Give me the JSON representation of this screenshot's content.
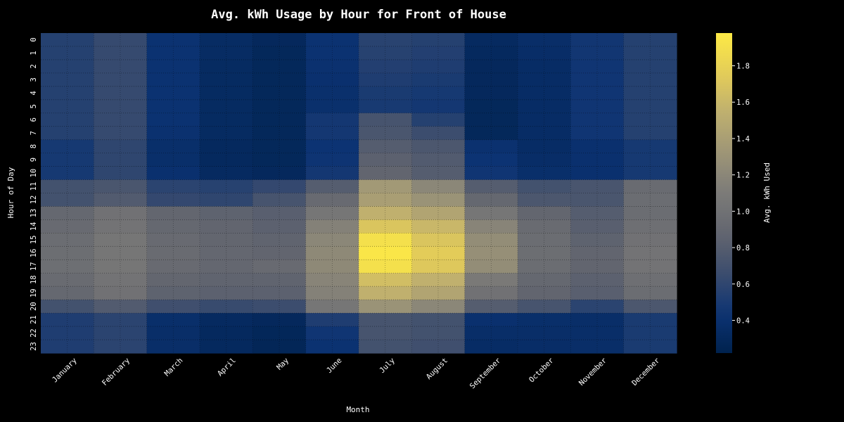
{
  "chart_data": {
    "type": "heatmap",
    "title": "Avg. kWh Usage by Hour for Front of House",
    "xlabel": "Month",
    "ylabel": "Hour of Day",
    "colorbar_label": "Avg. kWh Used",
    "colormap": "cividis",
    "color_range": [
      0.22,
      1.98
    ],
    "colorbar_ticks": [
      "0.4",
      "0.6",
      "0.8",
      "1.0",
      "1.2",
      "1.4",
      "1.6",
      "1.8"
    ],
    "grid": true,
    "x": [
      "January",
      "February",
      "March",
      "April",
      "May",
      "June",
      "July",
      "August",
      "September",
      "October",
      "November",
      "December"
    ],
    "y": [
      "0",
      "1",
      "2",
      "3",
      "4",
      "5",
      "6",
      "7",
      "8",
      "9",
      "10",
      "11",
      "12",
      "13",
      "14",
      "15",
      "16",
      "17",
      "18",
      "19",
      "20",
      "21",
      "22",
      "23"
    ],
    "values": [
      [
        0.55,
        0.63,
        0.42,
        0.34,
        0.3,
        0.42,
        0.57,
        0.55,
        0.32,
        0.37,
        0.46,
        0.55
      ],
      [
        0.55,
        0.63,
        0.42,
        0.34,
        0.29,
        0.42,
        0.56,
        0.54,
        0.31,
        0.36,
        0.46,
        0.55
      ],
      [
        0.55,
        0.63,
        0.42,
        0.33,
        0.29,
        0.41,
        0.54,
        0.52,
        0.3,
        0.35,
        0.45,
        0.55
      ],
      [
        0.55,
        0.63,
        0.42,
        0.33,
        0.29,
        0.4,
        0.52,
        0.5,
        0.3,
        0.35,
        0.45,
        0.55
      ],
      [
        0.55,
        0.63,
        0.42,
        0.33,
        0.29,
        0.39,
        0.5,
        0.48,
        0.3,
        0.35,
        0.45,
        0.55
      ],
      [
        0.55,
        0.63,
        0.42,
        0.33,
        0.29,
        0.39,
        0.49,
        0.47,
        0.29,
        0.35,
        0.45,
        0.55
      ],
      [
        0.55,
        0.63,
        0.42,
        0.33,
        0.29,
        0.47,
        0.72,
        0.55,
        0.29,
        0.35,
        0.45,
        0.55
      ],
      [
        0.55,
        0.63,
        0.41,
        0.33,
        0.29,
        0.47,
        0.74,
        0.66,
        0.29,
        0.35,
        0.45,
        0.55
      ],
      [
        0.48,
        0.6,
        0.38,
        0.31,
        0.29,
        0.43,
        0.8,
        0.75,
        0.41,
        0.35,
        0.4,
        0.48
      ],
      [
        0.48,
        0.6,
        0.38,
        0.31,
        0.29,
        0.44,
        0.84,
        0.78,
        0.43,
        0.36,
        0.4,
        0.48
      ],
      [
        0.48,
        0.6,
        0.4,
        0.32,
        0.3,
        0.47,
        0.87,
        0.8,
        0.45,
        0.38,
        0.4,
        0.48
      ],
      [
        0.7,
        0.74,
        0.58,
        0.56,
        0.62,
        0.8,
        1.35,
        1.2,
        0.8,
        0.7,
        0.73,
        0.93
      ],
      [
        0.7,
        0.78,
        0.62,
        0.6,
        0.72,
        0.92,
        1.4,
        1.3,
        0.9,
        0.75,
        0.74,
        0.95
      ],
      [
        0.9,
        1.0,
        0.88,
        0.85,
        0.82,
        1.05,
        1.55,
        1.45,
        1.05,
        0.88,
        0.8,
        0.95
      ],
      [
        0.92,
        1.02,
        0.9,
        0.87,
        0.84,
        1.15,
        1.7,
        1.6,
        1.18,
        0.93,
        0.82,
        0.98
      ],
      [
        0.95,
        1.05,
        0.92,
        0.88,
        0.86,
        1.2,
        1.9,
        1.7,
        1.25,
        0.95,
        0.85,
        1.0
      ],
      [
        0.96,
        1.05,
        0.93,
        0.89,
        0.87,
        1.22,
        1.95,
        1.75,
        1.27,
        0.96,
        0.87,
        1.02
      ],
      [
        0.97,
        1.05,
        0.92,
        0.89,
        0.92,
        1.22,
        1.9,
        1.72,
        1.25,
        0.95,
        0.87,
        1.02
      ],
      [
        0.93,
        1.02,
        0.88,
        0.86,
        0.86,
        1.18,
        1.65,
        1.55,
        1.08,
        0.9,
        0.84,
        0.98
      ],
      [
        0.9,
        1.0,
        0.85,
        0.84,
        0.84,
        1.15,
        1.55,
        1.45,
        1.0,
        0.87,
        0.82,
        0.95
      ],
      [
        0.7,
        0.78,
        0.68,
        0.64,
        0.66,
        1.05,
        1.3,
        1.2,
        0.8,
        0.72,
        0.58,
        0.75
      ],
      [
        0.52,
        0.58,
        0.38,
        0.32,
        0.3,
        0.52,
        0.72,
        0.7,
        0.4,
        0.38,
        0.37,
        0.5
      ],
      [
        0.52,
        0.58,
        0.37,
        0.31,
        0.28,
        0.45,
        0.72,
        0.7,
        0.37,
        0.37,
        0.37,
        0.5
      ],
      [
        0.52,
        0.58,
        0.37,
        0.31,
        0.27,
        0.42,
        0.7,
        0.68,
        0.35,
        0.36,
        0.37,
        0.5
      ]
    ]
  }
}
